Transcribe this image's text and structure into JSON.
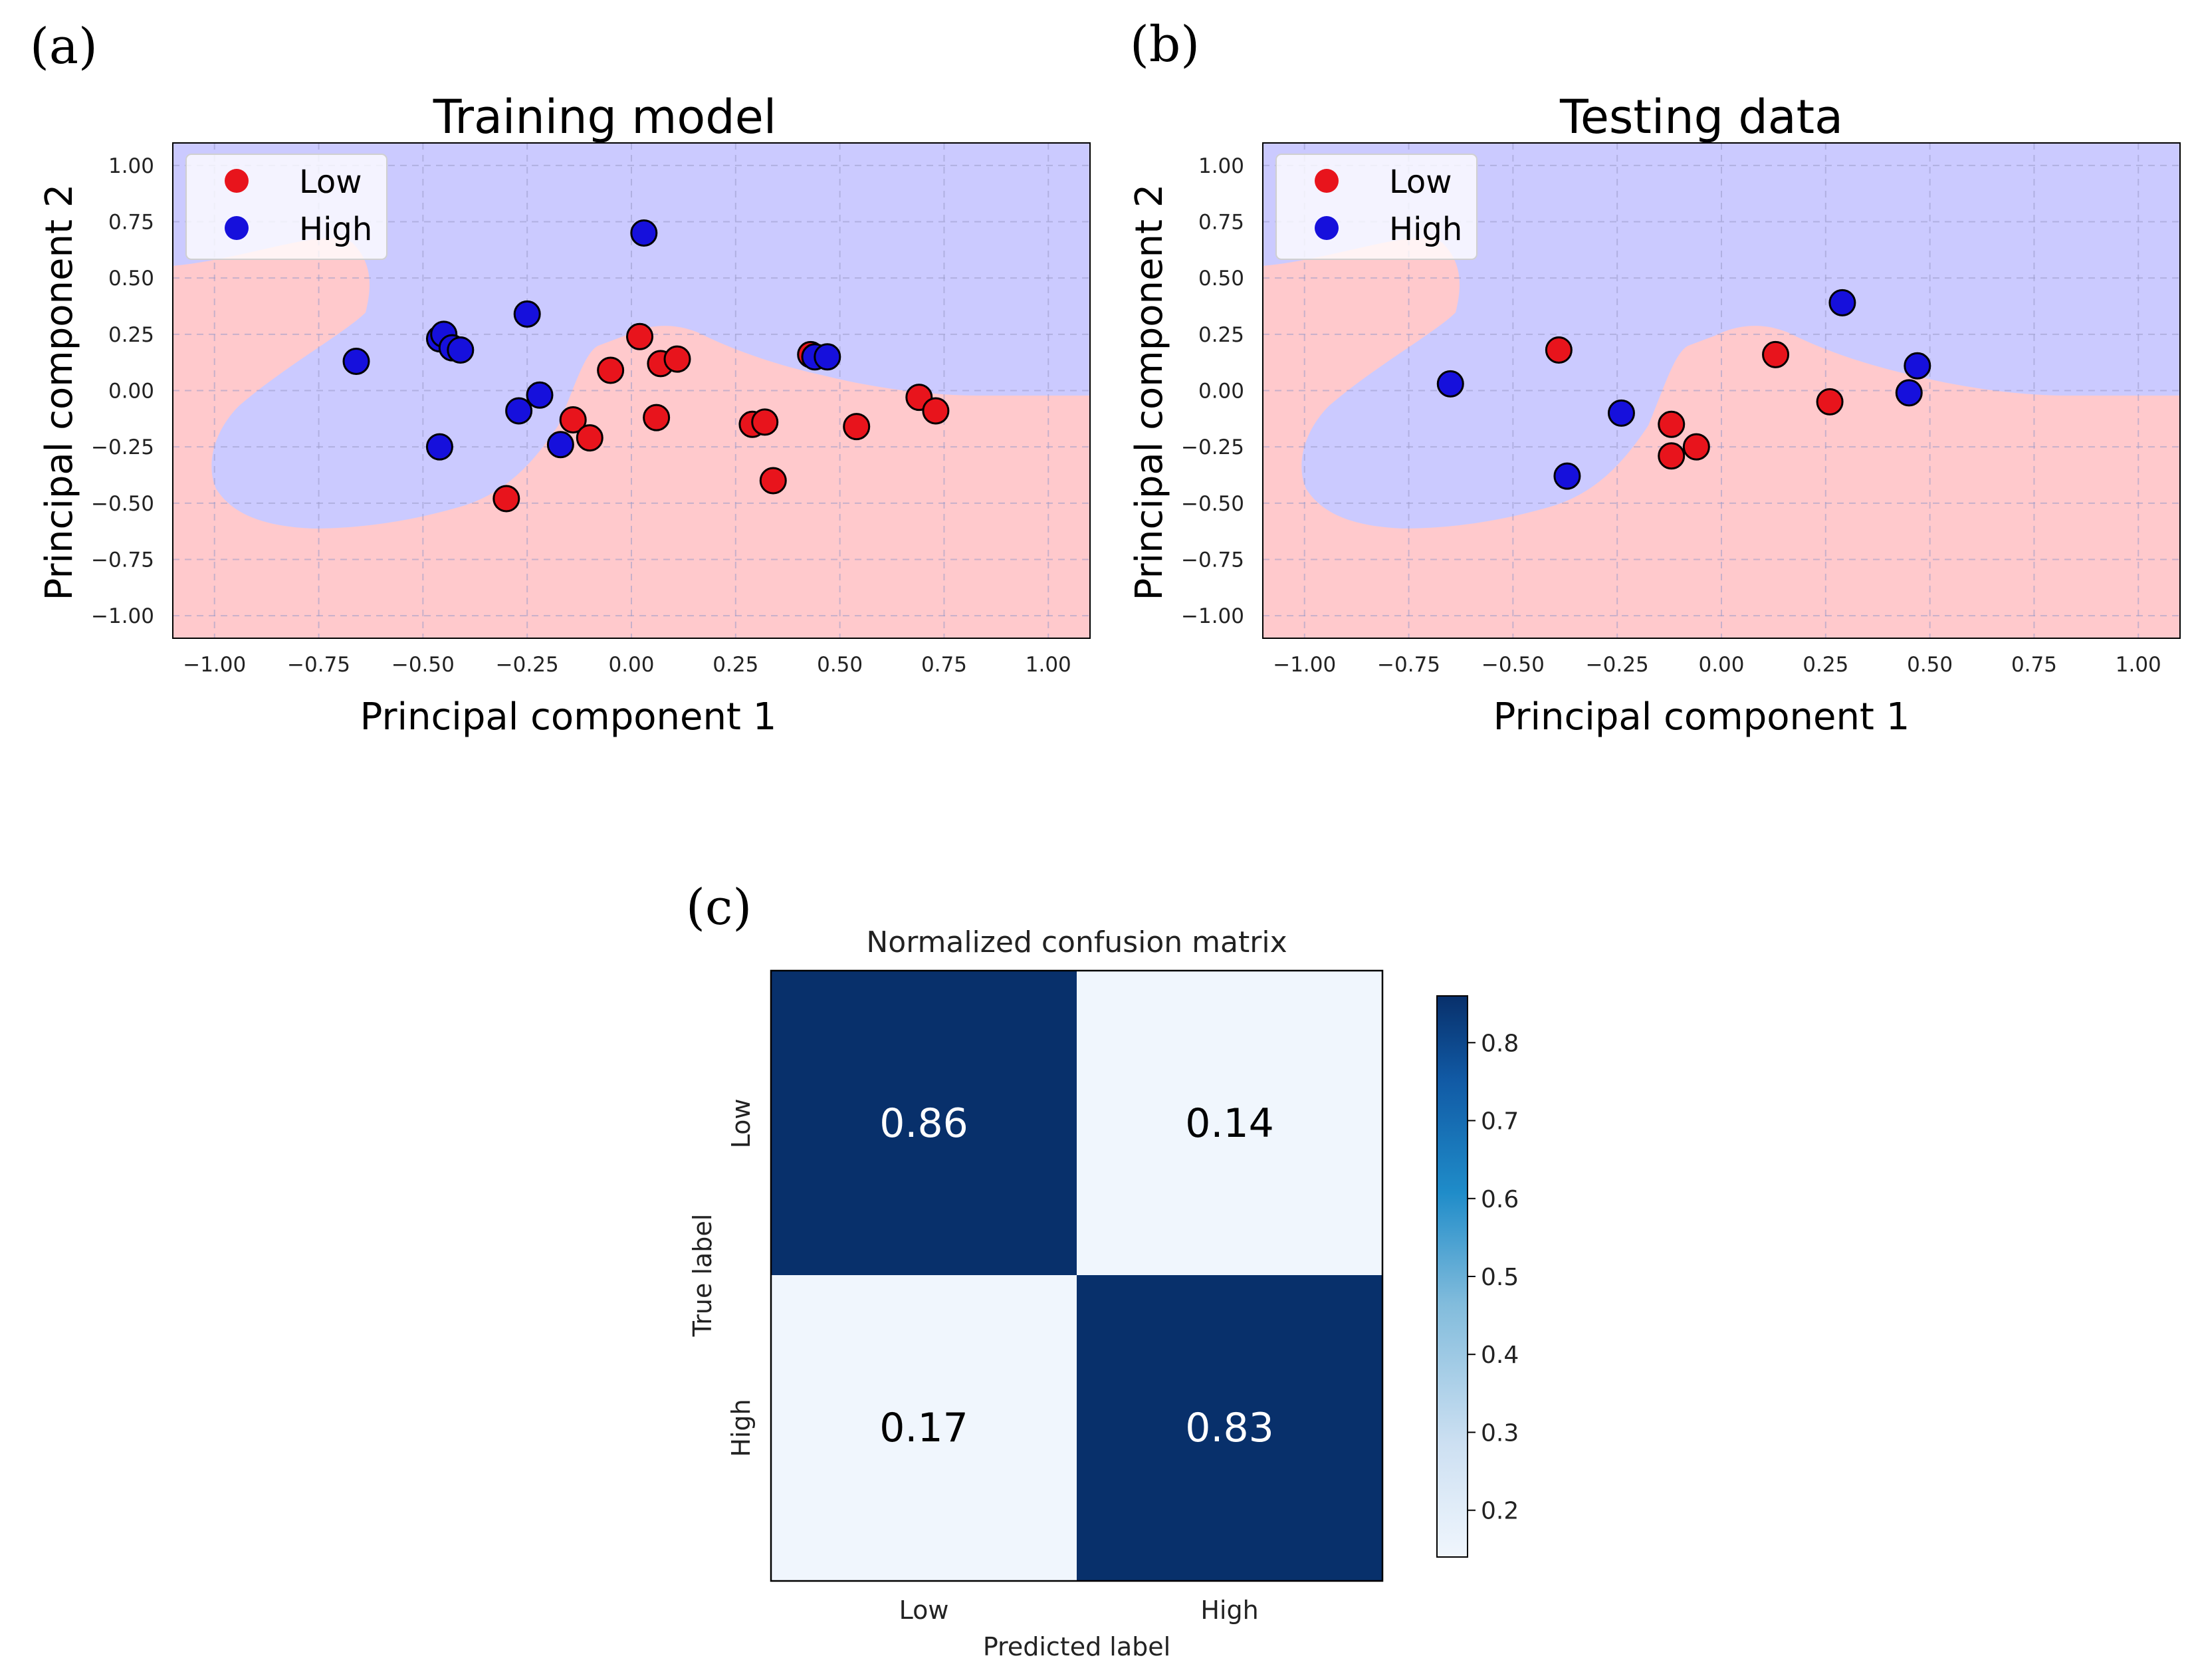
{
  "panels": {
    "a_label": "(a)",
    "b_label": "(b)",
    "c_label": "(c)"
  },
  "colors": {
    "low_region": "#ffc9cc",
    "high_region": "#cbcaff",
    "low_point": "#e8141c",
    "high_point": "#1610dc",
    "cm_dark": "#08306b",
    "cm_light": "#f0f6fd"
  },
  "chart_data": [
    {
      "type": "scatter",
      "title": "Training model",
      "xlabel": "Principal component 1",
      "ylabel": "Principal component 2",
      "xlim": [
        -1.1,
        1.1
      ],
      "ylim": [
        -1.1,
        1.1
      ],
      "xticks": [
        "−1.00",
        "−0.75",
        "−0.50",
        "−0.25",
        "0.00",
        "0.25",
        "0.50",
        "0.75",
        "1.00"
      ],
      "yticks": [
        "1.00",
        "0.75",
        "0.50",
        "0.25",
        "0.00",
        "−0.25",
        "−0.50",
        "−0.75",
        "−1.00"
      ],
      "grid": true,
      "legend": {
        "position": "top-left",
        "entries": [
          "Low",
          "High"
        ]
      },
      "series": [
        {
          "name": "Low",
          "points": [
            [
              -0.3,
              -0.48
            ],
            [
              -0.14,
              -0.13
            ],
            [
              -0.1,
              -0.21
            ],
            [
              -0.05,
              0.09
            ],
            [
              0.02,
              0.24
            ],
            [
              0.06,
              -0.12
            ],
            [
              0.07,
              0.12
            ],
            [
              0.11,
              0.14
            ],
            [
              0.29,
              -0.15
            ],
            [
              0.32,
              -0.14
            ],
            [
              0.34,
              -0.4
            ],
            [
              0.43,
              0.16
            ],
            [
              0.54,
              -0.16
            ],
            [
              0.69,
              -0.03
            ],
            [
              0.73,
              -0.09
            ]
          ]
        },
        {
          "name": "High",
          "points": [
            [
              -0.66,
              0.13
            ],
            [
              -0.46,
              0.23
            ],
            [
              -0.45,
              0.25
            ],
            [
              -0.43,
              0.19
            ],
            [
              -0.41,
              0.18
            ],
            [
              -0.46,
              -0.25
            ],
            [
              -0.25,
              0.34
            ],
            [
              -0.27,
              -0.09
            ],
            [
              -0.22,
              -0.02
            ],
            [
              -0.17,
              -0.24
            ],
            [
              0.03,
              0.7
            ],
            [
              0.44,
              0.15
            ],
            [
              0.47,
              0.15
            ]
          ]
        }
      ]
    },
    {
      "type": "scatter",
      "title": "Testing data",
      "xlabel": "Principal component 1",
      "ylabel": "Principal component 2",
      "xlim": [
        -1.1,
        1.1
      ],
      "ylim": [
        -1.1,
        1.1
      ],
      "xticks": [
        "−1.00",
        "−0.75",
        "−0.50",
        "−0.25",
        "0.00",
        "0.25",
        "0.50",
        "0.75",
        "1.00"
      ],
      "yticks": [
        "1.00",
        "0.75",
        "0.50",
        "0.25",
        "0.00",
        "−0.25",
        "−0.50",
        "−0.75",
        "−1.00"
      ],
      "grid": true,
      "legend": {
        "position": "top-left",
        "entries": [
          "Low",
          "High"
        ]
      },
      "series": [
        {
          "name": "Low",
          "points": [
            [
              -0.39,
              0.18
            ],
            [
              -0.12,
              -0.15
            ],
            [
              -0.12,
              -0.29
            ],
            [
              -0.06,
              -0.25
            ],
            [
              0.13,
              0.16
            ],
            [
              0.26,
              -0.05
            ]
          ]
        },
        {
          "name": "High",
          "points": [
            [
              -0.65,
              0.03
            ],
            [
              -0.37,
              -0.38
            ],
            [
              -0.24,
              -0.1
            ],
            [
              0.29,
              0.39
            ],
            [
              0.45,
              -0.01
            ],
            [
              0.47,
              0.11
            ]
          ]
        }
      ]
    },
    {
      "type": "heatmap",
      "title": "Normalized confusion matrix",
      "xlabel": "Predicted label",
      "ylabel": "True label",
      "x_categories": [
        "Low",
        "High"
      ],
      "y_categories": [
        "Low",
        "High"
      ],
      "values": [
        [
          "0.86",
          "0.14"
        ],
        [
          "0.17",
          "0.83"
        ]
      ],
      "colorbar": {
        "min": 0.14,
        "max": 0.86,
        "ticks": [
          "0.8",
          "0.7",
          "0.6",
          "0.5",
          "0.4",
          "0.3",
          "0.2"
        ]
      }
    }
  ]
}
